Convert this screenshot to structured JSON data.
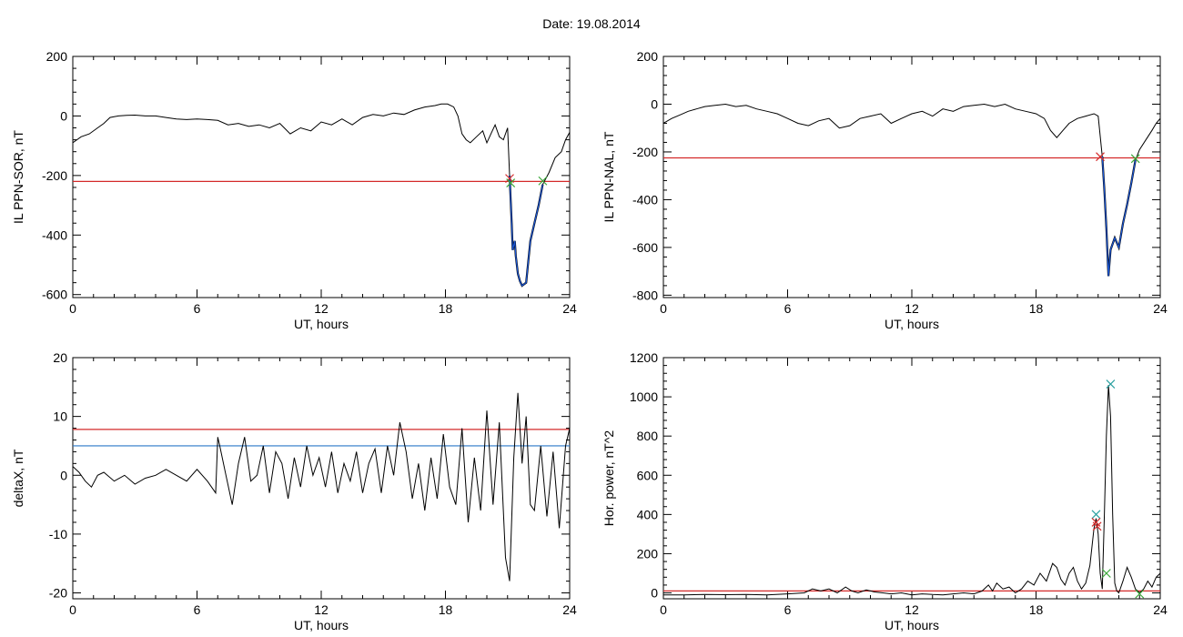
{
  "header": {
    "date_text": "Date:  19.08.2014"
  },
  "colors": {
    "frame": "#000000",
    "data_line": "#000000",
    "threshold_red": "#d42a2a",
    "threshold_blue": "#2a78c8",
    "event_blue": "#1a56d6",
    "marker_green": "#3aa83a",
    "marker_red": "#d42a2a",
    "marker_teal": "#2aa0a0"
  },
  "chart_data": [
    {
      "id": "sor",
      "type": "line",
      "xlabel": "UT, hours",
      "ylabel": "IL PPN-SOR, nT",
      "xlim": [
        0,
        24
      ],
      "ylim": [
        -610,
        200
      ],
      "xticks": [
        0,
        6,
        12,
        18,
        24
      ],
      "yticks": [
        -600,
        -400,
        -200,
        0,
        200
      ],
      "threshold_red": -220,
      "series": [
        {
          "x": [
            0,
            0.4,
            0.8,
            1.2,
            1.5,
            1.8,
            2.2,
            2.6,
            3.0,
            3.5,
            4.0,
            4.5,
            5.0,
            5.5,
            6.0,
            6.5,
            7.0,
            7.5,
            8.0,
            8.5,
            9.0,
            9.5,
            10.0,
            10.5,
            11.0,
            11.5,
            12.0,
            12.5,
            13.0,
            13.5,
            14.0,
            14.5,
            15.0,
            15.5,
            16.0,
            16.5,
            17.0,
            17.5,
            17.8,
            18.1,
            18.4,
            18.6,
            18.8,
            19.0,
            19.2,
            19.5,
            19.8,
            20.0,
            20.2,
            20.4,
            20.6,
            20.8,
            21.0,
            21.1
          ],
          "y": [
            -90,
            -70,
            -60,
            -40,
            -25,
            -5,
            0,
            2,
            3,
            0,
            0,
            -5,
            -10,
            -12,
            -10,
            -12,
            -15,
            -30,
            -25,
            -35,
            -30,
            -40,
            -25,
            -60,
            -40,
            -50,
            -20,
            -30,
            -10,
            -30,
            -5,
            5,
            0,
            10,
            5,
            20,
            30,
            35,
            40,
            40,
            30,
            0,
            -60,
            -80,
            -90,
            -70,
            -50,
            -90,
            -60,
            -30,
            -70,
            -80,
            -40,
            -200
          ]
        }
      ],
      "event_series": {
        "x": [
          21.1,
          21.2,
          21.25,
          21.35,
          21.4,
          21.5,
          21.6,
          21.7,
          21.9,
          22.0,
          22.1,
          22.3,
          22.5,
          22.7
        ],
        "y": [
          -200,
          -360,
          -450,
          -420,
          -470,
          -530,
          -555,
          -570,
          -560,
          -490,
          -420,
          -360,
          -300,
          -230
        ]
      },
      "tail_series": {
        "x": [
          22.7,
          23.0,
          23.3,
          23.6,
          23.8,
          24.0
        ],
        "y": [
          -230,
          -190,
          -140,
          -120,
          -80,
          -55
        ]
      },
      "markers": [
        {
          "x": 21.1,
          "y": -210,
          "color": "marker_red"
        },
        {
          "x": 21.15,
          "y": -225,
          "color": "marker_green"
        },
        {
          "x": 22.7,
          "y": -218,
          "color": "marker_green"
        }
      ]
    },
    {
      "id": "nal",
      "type": "line",
      "xlabel": "UT, hours",
      "ylabel": "IL PPN-NAL, nT",
      "xlim": [
        0,
        24
      ],
      "ylim": [
        -810,
        200
      ],
      "xticks": [
        0,
        6,
        12,
        18,
        24
      ],
      "yticks": [
        -800,
        -600,
        -400,
        -200,
        0,
        200
      ],
      "threshold_red": -225,
      "series": [
        {
          "x": [
            0,
            0.4,
            0.8,
            1.2,
            1.6,
            2.0,
            2.5,
            3.0,
            3.5,
            4.0,
            4.5,
            5.0,
            5.5,
            6.0,
            6.5,
            7.0,
            7.5,
            8.0,
            8.5,
            9.0,
            9.5,
            10.0,
            10.5,
            11.0,
            11.5,
            12.0,
            12.5,
            13.0,
            13.5,
            14.0,
            14.5,
            15.0,
            15.5,
            16.0,
            16.5,
            17.0,
            17.5,
            18.0,
            18.4,
            18.7,
            19.0,
            19.3,
            19.6,
            20.0,
            20.4,
            20.8,
            21.0,
            21.2
          ],
          "y": [
            -80,
            -60,
            -45,
            -30,
            -20,
            -10,
            -5,
            0,
            -10,
            -5,
            -20,
            -30,
            -40,
            -60,
            -80,
            -90,
            -70,
            -60,
            -100,
            -90,
            -60,
            -50,
            -40,
            -80,
            -60,
            -40,
            -30,
            -50,
            -20,
            -30,
            -10,
            -5,
            0,
            -10,
            0,
            -20,
            -30,
            -40,
            -60,
            -110,
            -140,
            -110,
            -80,
            -60,
            -50,
            -40,
            -50,
            -220
          ]
        }
      ],
      "event_series": {
        "x": [
          21.2,
          21.3,
          21.4,
          21.5,
          21.6,
          21.8,
          22.0,
          22.2,
          22.4,
          22.6,
          22.8
        ],
        "y": [
          -220,
          -360,
          -520,
          -720,
          -610,
          -560,
          -600,
          -500,
          -420,
          -330,
          -235
        ]
      },
      "tail_series": {
        "x": [
          22.8,
          23.0,
          23.3,
          23.6,
          23.8,
          24.0
        ],
        "y": [
          -235,
          -190,
          -150,
          -110,
          -80,
          -60
        ]
      },
      "markers": [
        {
          "x": 21.1,
          "y": -220,
          "color": "marker_red"
        },
        {
          "x": 22.8,
          "y": -228,
          "color": "marker_green"
        }
      ]
    },
    {
      "id": "deltax",
      "type": "line",
      "xlabel": "UT, hours",
      "ylabel": "deltaX, nT",
      "xlim": [
        0,
        24
      ],
      "ylim": [
        -21,
        20
      ],
      "xticks": [
        0,
        6,
        12,
        18,
        24
      ],
      "yticks": [
        -20,
        -10,
        0,
        10,
        20
      ],
      "threshold_red": 7.8,
      "threshold_blue": 5.0,
      "series": [
        {
          "x": [
            0,
            0.3,
            0.6,
            0.9,
            1.2,
            1.5,
            2.0,
            2.5,
            3.0,
            3.5,
            4.0,
            4.5,
            5.0,
            5.5,
            6.0,
            6.5,
            6.9,
            7.0,
            7.1,
            7.4,
            7.7,
            8.0,
            8.3,
            8.6,
            8.9,
            9.2,
            9.5,
            9.8,
            10.1,
            10.4,
            10.7,
            11.0,
            11.3,
            11.6,
            11.9,
            12.2,
            12.5,
            12.8,
            13.1,
            13.4,
            13.7,
            14.0,
            14.3,
            14.6,
            14.9,
            15.2,
            15.5,
            15.8,
            16.1,
            16.4,
            16.7,
            17.0,
            17.3,
            17.6,
            17.9,
            18.2,
            18.5,
            18.8,
            19.1,
            19.4,
            19.7,
            20.0,
            20.3,
            20.6,
            20.9,
            21.1,
            21.3,
            21.5,
            21.7,
            21.9,
            22.1,
            22.3,
            22.6,
            22.9,
            23.2,
            23.5,
            23.8,
            24.0
          ],
          "y": [
            1.5,
            0.5,
            -1,
            -2,
            0,
            0.5,
            -1,
            0,
            -1.5,
            -0.5,
            0,
            1,
            0,
            -1,
            1,
            -1,
            -3,
            6.5,
            5,
            0,
            -5,
            2,
            6.5,
            -1,
            0,
            5,
            -3,
            4,
            2,
            -4,
            3,
            -2,
            5,
            0,
            3,
            -2,
            4,
            -3,
            2,
            -1,
            4,
            -3,
            2,
            4.5,
            -3,
            5,
            0,
            9,
            4,
            -4,
            2,
            -6,
            3,
            -4,
            7,
            -2,
            -5,
            8,
            -8,
            3,
            -6,
            11,
            -5,
            9,
            -14,
            -18,
            3,
            14,
            2,
            10,
            -5,
            -6,
            5,
            -7,
            4,
            -9,
            5,
            8
          ]
        }
      ],
      "markers": []
    },
    {
      "id": "power",
      "type": "line",
      "xlabel": "UT, hours",
      "ylabel": "Hor. power, nT^2",
      "xlim": [
        0,
        24
      ],
      "ylim": [
        -30,
        1200
      ],
      "xticks": [
        0,
        6,
        12,
        18,
        24
      ],
      "yticks": [
        0,
        200,
        400,
        600,
        800,
        1000,
        1200
      ],
      "threshold_red": 10,
      "series": [
        {
          "x": [
            0,
            1,
            2,
            3,
            4,
            5,
            6,
            6.8,
            7.2,
            7.6,
            8.0,
            8.4,
            8.8,
            9.1,
            9.4,
            9.8,
            10.2,
            10.6,
            11,
            11.5,
            12,
            12.5,
            13,
            13.5,
            14,
            14.5,
            15,
            15.4,
            15.7,
            15.9,
            16.1,
            16.4,
            16.7,
            17.0,
            17.3,
            17.6,
            17.9,
            18.2,
            18.5,
            18.8,
            19.0,
            19.2,
            19.4,
            19.6,
            19.8,
            20.0,
            20.2,
            20.4,
            20.6,
            20.8,
            20.9,
            21.0,
            21.1,
            21.2,
            21.3,
            21.4,
            21.5,
            21.6,
            21.7,
            21.8,
            21.9,
            22.0,
            22.2,
            22.4,
            22.6,
            22.8,
            23.0,
            23.2,
            23.4,
            23.6,
            23.8,
            24.0
          ],
          "y": [
            -10,
            -10,
            -8,
            -9,
            -8,
            -10,
            -5,
            0,
            20,
            10,
            20,
            0,
            30,
            10,
            0,
            15,
            5,
            0,
            -5,
            0,
            -10,
            -5,
            -8,
            -10,
            -5,
            0,
            -5,
            10,
            40,
            10,
            50,
            20,
            30,
            0,
            20,
            60,
            40,
            100,
            60,
            150,
            130,
            70,
            40,
            100,
            130,
            60,
            20,
            50,
            140,
            330,
            380,
            300,
            100,
            20,
            400,
            800,
            1060,
            900,
            400,
            50,
            10,
            0,
            60,
            130,
            80,
            20,
            0,
            20,
            60,
            30,
            80,
            100
          ]
        }
      ],
      "markers": [
        {
          "x": 20.9,
          "y": 400,
          "color": "marker_teal"
        },
        {
          "x": 20.9,
          "y": 360,
          "color": "marker_red"
        },
        {
          "x": 20.95,
          "y": 340,
          "color": "marker_red"
        },
        {
          "x": 21.4,
          "y": 100,
          "color": "marker_green"
        },
        {
          "x": 21.6,
          "y": 1065,
          "color": "marker_teal"
        },
        {
          "x": 23.0,
          "y": -5,
          "color": "marker_green"
        }
      ]
    }
  ]
}
